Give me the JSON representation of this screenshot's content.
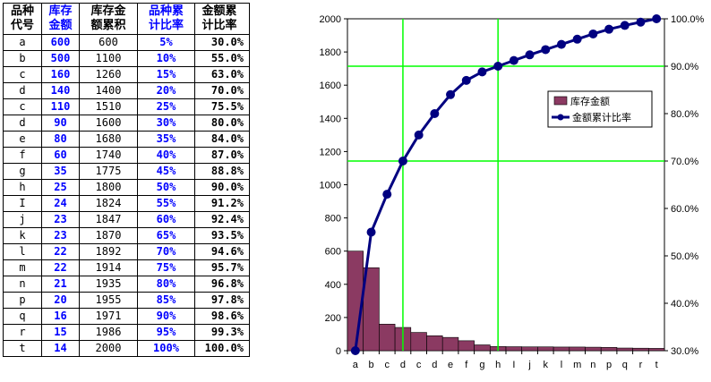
{
  "table": {
    "headers": [
      "品种\n代号",
      "库存\n金额",
      "库存金\n额累积",
      "品种累\n计比率",
      "金额累\n计比率"
    ],
    "rows": [
      [
        "a",
        "600",
        "600",
        "5%",
        "30.0%"
      ],
      [
        "b",
        "500",
        "1100",
        "10%",
        "55.0%"
      ],
      [
        "c",
        "160",
        "1260",
        "15%",
        "63.0%"
      ],
      [
        "d",
        "140",
        "1400",
        "20%",
        "70.0%"
      ],
      [
        "c",
        "110",
        "1510",
        "25%",
        "75.5%"
      ],
      [
        "d",
        "90",
        "1600",
        "30%",
        "80.0%"
      ],
      [
        "e",
        "80",
        "1680",
        "35%",
        "84.0%"
      ],
      [
        "f",
        "60",
        "1740",
        "40%",
        "87.0%"
      ],
      [
        "g",
        "35",
        "1775",
        "45%",
        "88.8%"
      ],
      [
        "h",
        "25",
        "1800",
        "50%",
        "90.0%"
      ],
      [
        "I",
        "24",
        "1824",
        "55%",
        "91.2%"
      ],
      [
        "j",
        "23",
        "1847",
        "60%",
        "92.4%"
      ],
      [
        "k",
        "23",
        "1870",
        "65%",
        "93.5%"
      ],
      [
        "l",
        "22",
        "1892",
        "70%",
        "94.6%"
      ],
      [
        "m",
        "22",
        "1914",
        "75%",
        "95.7%"
      ],
      [
        "n",
        "21",
        "1935",
        "80%",
        "96.8%"
      ],
      [
        "p",
        "20",
        "1955",
        "85%",
        "97.8%"
      ],
      [
        "q",
        "16",
        "1971",
        "90%",
        "98.6%"
      ],
      [
        "r",
        "15",
        "1986",
        "95%",
        "99.3%"
      ],
      [
        "t",
        "14",
        "2000",
        "100%",
        "100.0%"
      ]
    ]
  },
  "chart_data": {
    "type": "bar+line",
    "categories": [
      "a",
      "b",
      "c",
      "d",
      "c",
      "d",
      "e",
      "f",
      "g",
      "h",
      "I",
      "j",
      "k",
      "l",
      "m",
      "n",
      "p",
      "q",
      "r",
      "t"
    ],
    "series": [
      {
        "name": "库存金额",
        "type": "bar",
        "axis": "left",
        "values": [
          600,
          500,
          160,
          140,
          110,
          90,
          80,
          60,
          35,
          25,
          24,
          23,
          23,
          22,
          22,
          21,
          20,
          16,
          15,
          14
        ]
      },
      {
        "name": "金额累计比率",
        "type": "line",
        "axis": "right",
        "values": [
          30.0,
          55.0,
          63.0,
          70.0,
          75.5,
          80.0,
          84.0,
          87.0,
          88.8,
          90.0,
          91.2,
          92.4,
          93.5,
          94.6,
          95.7,
          96.8,
          97.8,
          98.6,
          99.3,
          100.0
        ]
      }
    ],
    "ylim_left": [
      0,
      2000
    ],
    "yticks_left": [
      "0",
      "200",
      "400",
      "600",
      "800",
      "1000",
      "1200",
      "1400",
      "1600",
      "1800",
      "2000"
    ],
    "ylim_right": [
      30,
      100
    ],
    "yticks_right": [
      "30.0%",
      "40.0%",
      "50.0%",
      "60.0%",
      "70.0%",
      "80.0%",
      "90.0%",
      "100.0%"
    ],
    "reference_lines": {
      "horizontal_percent": [
        70,
        90
      ],
      "vertical_category_index": [
        3,
        9
      ]
    },
    "colors": {
      "bar": "#8b3a62",
      "line": "#000080",
      "reference": "#00ff00"
    },
    "legend_position": "right-middle"
  }
}
